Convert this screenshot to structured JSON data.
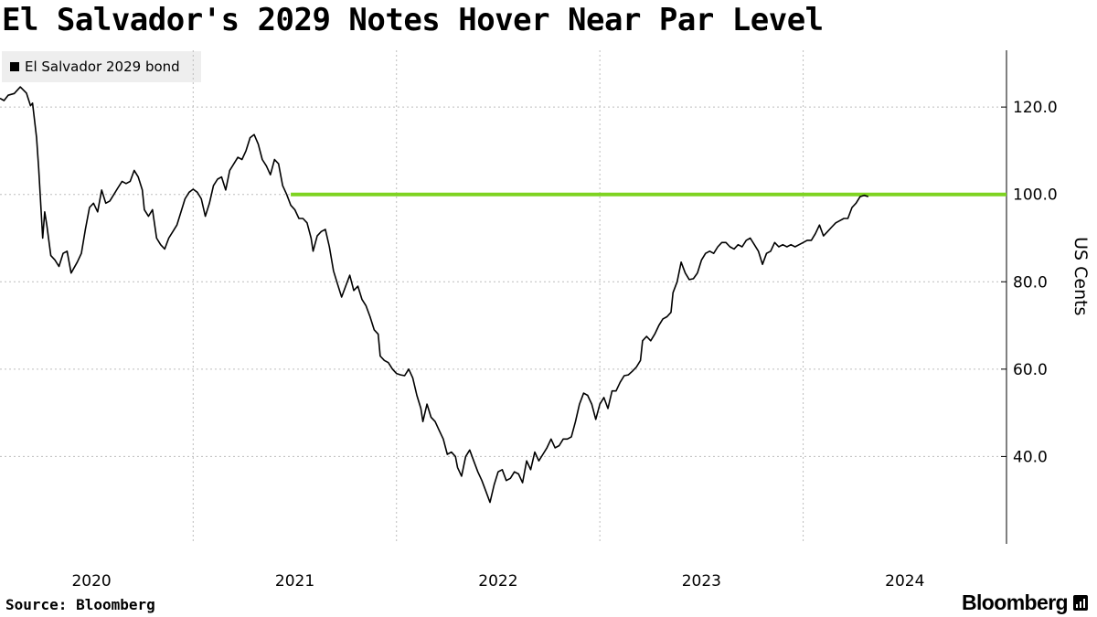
{
  "chart_data": {
    "type": "line",
    "title": "El Salvador's 2029 Notes Hover Near Par Level",
    "ylabel": "US Cents",
    "ylim": [
      20,
      133
    ],
    "xlim": [
      2019.55,
      2024.5
    ],
    "y_ticks": [
      40,
      60,
      80,
      100,
      120
    ],
    "y_tick_labels": [
      "40.0",
      "60.0",
      "80.0",
      "100.0",
      "120.0"
    ],
    "x_gridlines": [
      2020.5,
      2021.5,
      2022.5,
      2023.5
    ],
    "x_tick_labels": [
      {
        "label": "2020",
        "x": 2020
      },
      {
        "label": "2021",
        "x": 2021
      },
      {
        "label": "2022",
        "x": 2022
      },
      {
        "label": "2023",
        "x": 2023
      },
      {
        "label": "2024",
        "x": 2024
      }
    ],
    "legend": {
      "position": "top-left"
    },
    "series": [
      {
        "name": "El Salvador 2029 bond",
        "color": "#000000",
        "points": [
          [
            2019.55,
            122.0
          ],
          [
            2019.57,
            121.5
          ],
          [
            2019.59,
            122.7
          ],
          [
            2019.62,
            123.1
          ],
          [
            2019.65,
            124.6
          ],
          [
            2019.68,
            123.2
          ],
          [
            2019.7,
            120.3
          ],
          [
            2019.71,
            120.9
          ],
          [
            2019.73,
            113.0
          ],
          [
            2019.74,
            106.0
          ],
          [
            2019.76,
            90.0
          ],
          [
            2019.77,
            96.0
          ],
          [
            2019.78,
            93.0
          ],
          [
            2019.8,
            86.0
          ],
          [
            2019.82,
            85.0
          ],
          [
            2019.84,
            83.5
          ],
          [
            2019.86,
            86.5
          ],
          [
            2019.88,
            87.0
          ],
          [
            2019.9,
            82.0
          ],
          [
            2019.93,
            84.5
          ],
          [
            2019.95,
            86.5
          ],
          [
            2019.97,
            92.0
          ],
          [
            2019.99,
            97.0
          ],
          [
            2020.01,
            98.0
          ],
          [
            2020.03,
            96.0
          ],
          [
            2020.05,
            101.0
          ],
          [
            2020.07,
            98.0
          ],
          [
            2020.09,
            98.5
          ],
          [
            2020.11,
            100.0
          ],
          [
            2020.13,
            101.5
          ],
          [
            2020.15,
            103.0
          ],
          [
            2020.17,
            102.5
          ],
          [
            2020.19,
            103.0
          ],
          [
            2020.21,
            105.5
          ],
          [
            2020.23,
            104.0
          ],
          [
            2020.25,
            101.0
          ],
          [
            2020.26,
            96.5
          ],
          [
            2020.28,
            95.0
          ],
          [
            2020.3,
            96.5
          ],
          [
            2020.32,
            90.0
          ],
          [
            2020.34,
            88.5
          ],
          [
            2020.36,
            87.5
          ],
          [
            2020.38,
            90.0
          ],
          [
            2020.4,
            91.5
          ],
          [
            2020.42,
            93.0
          ],
          [
            2020.44,
            96.0
          ],
          [
            2020.46,
            99.0
          ],
          [
            2020.48,
            100.5
          ],
          [
            2020.5,
            101.2
          ],
          [
            2020.52,
            100.5
          ],
          [
            2020.54,
            99.0
          ],
          [
            2020.56,
            95.0
          ],
          [
            2020.58,
            98.0
          ],
          [
            2020.6,
            102.0
          ],
          [
            2020.62,
            103.5
          ],
          [
            2020.64,
            104.0
          ],
          [
            2020.66,
            101.0
          ],
          [
            2020.68,
            105.5
          ],
          [
            2020.7,
            107.0
          ],
          [
            2020.72,
            108.5
          ],
          [
            2020.74,
            108.0
          ],
          [
            2020.76,
            110.0
          ],
          [
            2020.78,
            113.0
          ],
          [
            2020.8,
            113.7
          ],
          [
            2020.82,
            111.5
          ],
          [
            2020.84,
            108.0
          ],
          [
            2020.86,
            106.5
          ],
          [
            2020.88,
            104.5
          ],
          [
            2020.9,
            108.0
          ],
          [
            2020.92,
            107.0
          ],
          [
            2020.94,
            102.0
          ],
          [
            2020.96,
            100.0
          ],
          [
            2020.98,
            97.5
          ],
          [
            2021.0,
            96.5
          ],
          [
            2021.02,
            94.5
          ],
          [
            2021.04,
            94.5
          ],
          [
            2021.06,
            93.5
          ],
          [
            2021.08,
            90.0
          ],
          [
            2021.09,
            87.0
          ],
          [
            2021.11,
            90.5
          ],
          [
            2021.13,
            91.5
          ],
          [
            2021.15,
            92.0
          ],
          [
            2021.17,
            88.0
          ],
          [
            2021.19,
            82.5
          ],
          [
            2021.21,
            79.5
          ],
          [
            2021.23,
            76.5
          ],
          [
            2021.25,
            79.0
          ],
          [
            2021.27,
            81.5
          ],
          [
            2021.29,
            78.0
          ],
          [
            2021.31,
            79.0
          ],
          [
            2021.33,
            76.0
          ],
          [
            2021.35,
            74.5
          ],
          [
            2021.37,
            72.0
          ],
          [
            2021.39,
            69.0
          ],
          [
            2021.41,
            68.0
          ],
          [
            2021.42,
            63.0
          ],
          [
            2021.44,
            62.0
          ],
          [
            2021.46,
            61.5
          ],
          [
            2021.48,
            60.0
          ],
          [
            2021.5,
            59.0
          ],
          [
            2021.52,
            58.7
          ],
          [
            2021.54,
            58.5
          ],
          [
            2021.56,
            60.0
          ],
          [
            2021.58,
            58.0
          ],
          [
            2021.6,
            54.0
          ],
          [
            2021.62,
            51.0
          ],
          [
            2021.63,
            48.0
          ],
          [
            2021.65,
            52.0
          ],
          [
            2021.67,
            49.0
          ],
          [
            2021.69,
            48.0
          ],
          [
            2021.71,
            46.0
          ],
          [
            2021.73,
            44.0
          ],
          [
            2021.75,
            40.5
          ],
          [
            2021.77,
            41.0
          ],
          [
            2021.79,
            40.0
          ],
          [
            2021.8,
            37.5
          ],
          [
            2021.82,
            35.5
          ],
          [
            2021.84,
            40.0
          ],
          [
            2021.86,
            41.5
          ],
          [
            2021.88,
            39.0
          ],
          [
            2021.9,
            36.5
          ],
          [
            2021.92,
            34.5
          ],
          [
            2021.94,
            32.0
          ],
          [
            2021.96,
            29.5
          ],
          [
            2021.98,
            33.5
          ],
          [
            2022.0,
            36.5
          ],
          [
            2022.02,
            37.0
          ],
          [
            2022.04,
            34.5
          ],
          [
            2022.06,
            35.0
          ],
          [
            2022.08,
            36.5
          ],
          [
            2022.1,
            36.0
          ],
          [
            2022.12,
            34.0
          ],
          [
            2022.14,
            39.0
          ],
          [
            2022.16,
            37.0
          ],
          [
            2022.18,
            41.0
          ],
          [
            2022.2,
            39.0
          ],
          [
            2022.22,
            40.5
          ],
          [
            2022.24,
            42.0
          ],
          [
            2022.26,
            44.0
          ],
          [
            2022.28,
            42.0
          ],
          [
            2022.3,
            42.5
          ],
          [
            2022.32,
            44.0
          ],
          [
            2022.34,
            44.0
          ],
          [
            2022.36,
            44.5
          ],
          [
            2022.38,
            48.0
          ],
          [
            2022.4,
            52.0
          ],
          [
            2022.42,
            54.5
          ],
          [
            2022.44,
            54.0
          ],
          [
            2022.46,
            52.0
          ],
          [
            2022.48,
            48.5
          ],
          [
            2022.5,
            52.0
          ],
          [
            2022.52,
            53.5
          ],
          [
            2022.54,
            51.0
          ],
          [
            2022.56,
            55.0
          ],
          [
            2022.58,
            55.0
          ],
          [
            2022.6,
            57.0
          ],
          [
            2022.62,
            58.5
          ],
          [
            2022.64,
            58.7
          ],
          [
            2022.66,
            59.5
          ],
          [
            2022.68,
            60.5
          ],
          [
            2022.7,
            62.0
          ],
          [
            2022.71,
            66.5
          ],
          [
            2022.73,
            67.5
          ],
          [
            2022.75,
            66.5
          ],
          [
            2022.77,
            68.0
          ],
          [
            2022.79,
            70.0
          ],
          [
            2022.81,
            71.5
          ],
          [
            2022.83,
            72.0
          ],
          [
            2022.85,
            73.0
          ],
          [
            2022.86,
            77.5
          ],
          [
            2022.88,
            80.0
          ],
          [
            2022.9,
            84.5
          ],
          [
            2022.92,
            82.0
          ],
          [
            2022.94,
            80.5
          ],
          [
            2022.96,
            80.7
          ],
          [
            2022.98,
            82.0
          ],
          [
            2023.0,
            85.0
          ],
          [
            2023.02,
            86.5
          ],
          [
            2023.04,
            87.0
          ],
          [
            2023.06,
            86.5
          ],
          [
            2023.08,
            88.0
          ],
          [
            2023.1,
            89.0
          ],
          [
            2023.12,
            89.0
          ],
          [
            2023.14,
            88.0
          ],
          [
            2023.16,
            87.5
          ],
          [
            2023.18,
            88.5
          ],
          [
            2023.2,
            88.0
          ],
          [
            2023.22,
            89.5
          ],
          [
            2023.24,
            90.0
          ],
          [
            2023.26,
            88.5
          ],
          [
            2023.28,
            87.0
          ],
          [
            2023.3,
            84.0
          ],
          [
            2023.32,
            86.5
          ],
          [
            2023.34,
            87.0
          ],
          [
            2023.36,
            89.0
          ],
          [
            2023.38,
            88.0
          ],
          [
            2023.4,
            88.5
          ],
          [
            2023.42,
            88.0
          ],
          [
            2023.44,
            88.5
          ],
          [
            2023.46,
            88.0
          ],
          [
            2023.48,
            88.5
          ],
          [
            2023.5,
            89.0
          ],
          [
            2023.52,
            89.5
          ],
          [
            2023.54,
            89.5
          ],
          [
            2023.56,
            91.0
          ],
          [
            2023.58,
            93.0
          ],
          [
            2023.6,
            90.5
          ],
          [
            2023.62,
            91.5
          ],
          [
            2023.64,
            92.5
          ],
          [
            2023.66,
            93.5
          ],
          [
            2023.68,
            94.0
          ],
          [
            2023.7,
            94.5
          ],
          [
            2023.72,
            94.5
          ],
          [
            2023.74,
            97.0
          ],
          [
            2023.76,
            98.0
          ],
          [
            2023.78,
            99.5
          ],
          [
            2023.8,
            99.8
          ],
          [
            2023.82,
            99.5
          ]
        ]
      }
    ],
    "reference_line": {
      "y": 100,
      "x_start": 2020.98,
      "x_end": 2024.5,
      "color": "#7ed321"
    }
  },
  "source": "Source: Bloomberg",
  "brand": "Bloomberg"
}
